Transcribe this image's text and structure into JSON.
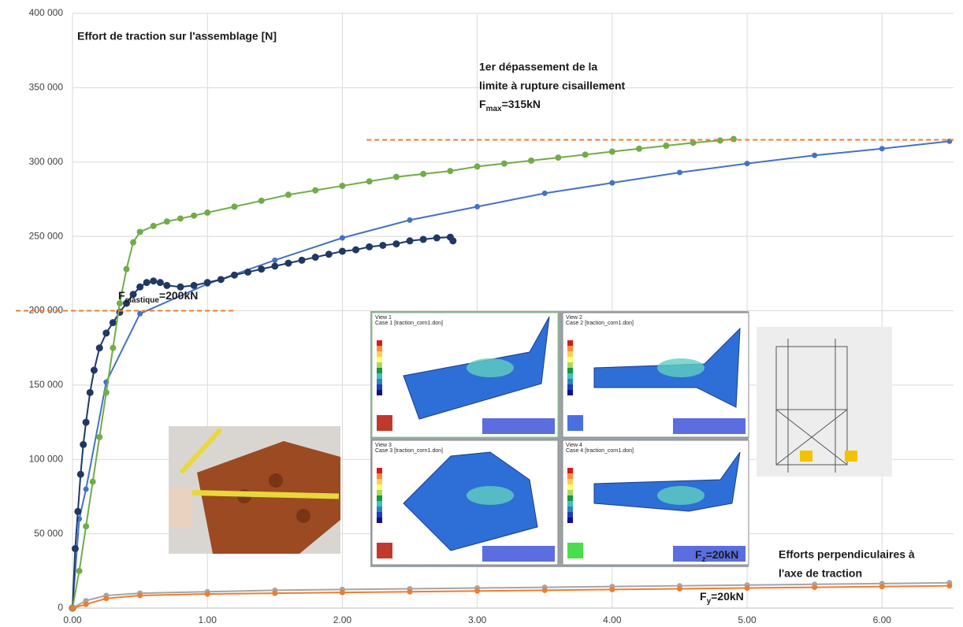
{
  "chart_data": {
    "type": "line",
    "xlim": [
      0,
      6.53
    ],
    "ylim": [
      0,
      400000
    ],
    "xticks": [
      {
        "value": 0,
        "label": "0.00"
      },
      {
        "value": 1,
        "label": "1.00"
      },
      {
        "value": 2,
        "label": "2.00"
      },
      {
        "value": 3,
        "label": "3.00"
      },
      {
        "value": 4,
        "label": "4.00"
      },
      {
        "value": 5,
        "label": "5.00"
      },
      {
        "value": 6,
        "label": "6.00"
      }
    ],
    "yticks": [
      0,
      {
        "value": 50000,
        "label": "50 000"
      },
      {
        "value": 100000,
        "label": "100 000"
      },
      {
        "value": 150000,
        "label": "150 000"
      },
      {
        "value": 200000,
        "label": "200 000"
      },
      {
        "value": 250000,
        "label": "250 000"
      },
      {
        "value": 300000,
        "label": "300 000"
      },
      {
        "value": 350000,
        "label": "350 000"
      },
      {
        "value": 400000,
        "label": "400 000"
      }
    ],
    "grid": true,
    "series": [
      {
        "color": "#4472c4",
        "x": [
          0,
          0.05,
          0.1,
          0.25,
          0.5,
          1.0,
          1.5,
          2.0,
          2.5,
          3.0,
          3.5,
          4.0,
          4.5,
          5.0,
          5.5,
          6.0,
          6.5
        ],
        "values": [
          0,
          60000,
          80000,
          152000,
          198000,
          218000,
          234000,
          249000,
          261000,
          270000,
          279000,
          286000,
          293000,
          299000,
          304500,
          309000,
          314000
        ]
      },
      {
        "color": "#1f3864",
        "x": [
          0,
          0.02,
          0.04,
          0.06,
          0.08,
          0.1,
          0.13,
          0.16,
          0.2,
          0.25,
          0.3,
          0.35,
          0.4,
          0.45,
          0.5,
          0.55,
          0.6,
          0.65,
          0.7,
          0.8,
          0.9,
          1.0,
          1.1,
          1.2,
          1.3,
          1.4,
          1.5,
          1.6,
          1.7,
          1.8,
          1.9,
          2.0,
          2.1,
          2.2,
          2.3,
          2.4,
          2.5,
          2.6,
          2.7,
          2.8,
          2.82
        ],
        "values": [
          0,
          40000,
          65000,
          90000,
          110000,
          125000,
          145000,
          160000,
          175000,
          185000,
          192000,
          199000,
          205000,
          211000,
          216000,
          219000,
          220000,
          219000,
          217000,
          216000,
          217000,
          219000,
          221000,
          224000,
          226000,
          228000,
          230000,
          232000,
          234000,
          236000,
          238000,
          240000,
          241000,
          243000,
          244000,
          245000,
          247000,
          248000,
          249000,
          249500,
          247000
        ]
      },
      {
        "color": "#70ad47",
        "x": [
          0,
          0.05,
          0.1,
          0.15,
          0.2,
          0.25,
          0.3,
          0.35,
          0.4,
          0.45,
          0.5,
          0.6,
          0.7,
          0.8,
          0.9,
          1.0,
          1.2,
          1.4,
          1.6,
          1.8,
          2.0,
          2.2,
          2.4,
          2.6,
          2.8,
          3.0,
          3.2,
          3.4,
          3.6,
          3.8,
          4.0,
          4.2,
          4.4,
          4.6,
          4.8,
          4.9
        ],
        "values": [
          0,
          25000,
          55000,
          85000,
          115000,
          145000,
          175000,
          205000,
          228000,
          246000,
          253000,
          257000,
          260000,
          262000,
          264000,
          266000,
          270000,
          274000,
          278000,
          281000,
          284000,
          287000,
          290000,
          292000,
          294000,
          297000,
          299000,
          301000,
          303000,
          305000,
          307000,
          309000,
          311000,
          313000,
          314500,
          315500
        ]
      },
      {
        "color": "#a5a5a5",
        "x": [
          0,
          0.1,
          0.25,
          0.5,
          1,
          1.5,
          2,
          2.5,
          3,
          3.5,
          4,
          4.5,
          5,
          5.5,
          6,
          6.5
        ],
        "values": [
          0,
          5000,
          8500,
          10000,
          11000,
          12000,
          12500,
          13000,
          13500,
          14000,
          14500,
          15000,
          15500,
          16000,
          16500,
          17000
        ]
      },
      {
        "color": "#ed7d31",
        "x": [
          0,
          0.1,
          0.25,
          0.5,
          1,
          1.5,
          2,
          2.5,
          3,
          3.5,
          4,
          4.5,
          5,
          5.5,
          6,
          6.5
        ],
        "values": [
          0,
          2500,
          6500,
          8500,
          9500,
          10000,
          10500,
          11000,
          11500,
          12000,
          12500,
          13000,
          13500,
          14000,
          14500,
          15000
        ]
      }
    ],
    "reference_lines": [
      {
        "color": "#ed7d31",
        "y": 200000,
        "x": [
          -0.42,
          1.21
        ]
      },
      {
        "color": "#ed7d31",
        "y": 315000,
        "x": [
          2.18,
          6.53
        ]
      }
    ],
    "annotations": [
      {
        "text": "Effort de traction sur l'assemblage [N]"
      },
      {
        "text": "1er dépassement de la"
      },
      {
        "text": "limite à rupture cisaillement"
      },
      {
        "base": "F",
        "sub": "max",
        "rest": "=315kN"
      },
      {
        "base": "F",
        "sub": "elastique",
        "rest": "=200kN"
      },
      {
        "base": "F",
        "sub": "z",
        "rest": "=20kN"
      },
      {
        "base": "F",
        "sub": "y",
        "rest": "=20kN"
      },
      {
        "text": "Efforts perpendiculaires à"
      },
      {
        "text": "l'axe de traction"
      }
    ]
  },
  "fea_panels": [
    {
      "view": "View 1",
      "case": "Case 1  [traction_corn1.don]"
    },
    {
      "view": "View 2",
      "case": "Case 2  [traction_corn1.don]"
    },
    {
      "view": "View 3",
      "case": "Case 3  [traction_corn1.don]"
    },
    {
      "view": "View 4",
      "case": "Case 4  [traction_corn1.don]"
    }
  ]
}
